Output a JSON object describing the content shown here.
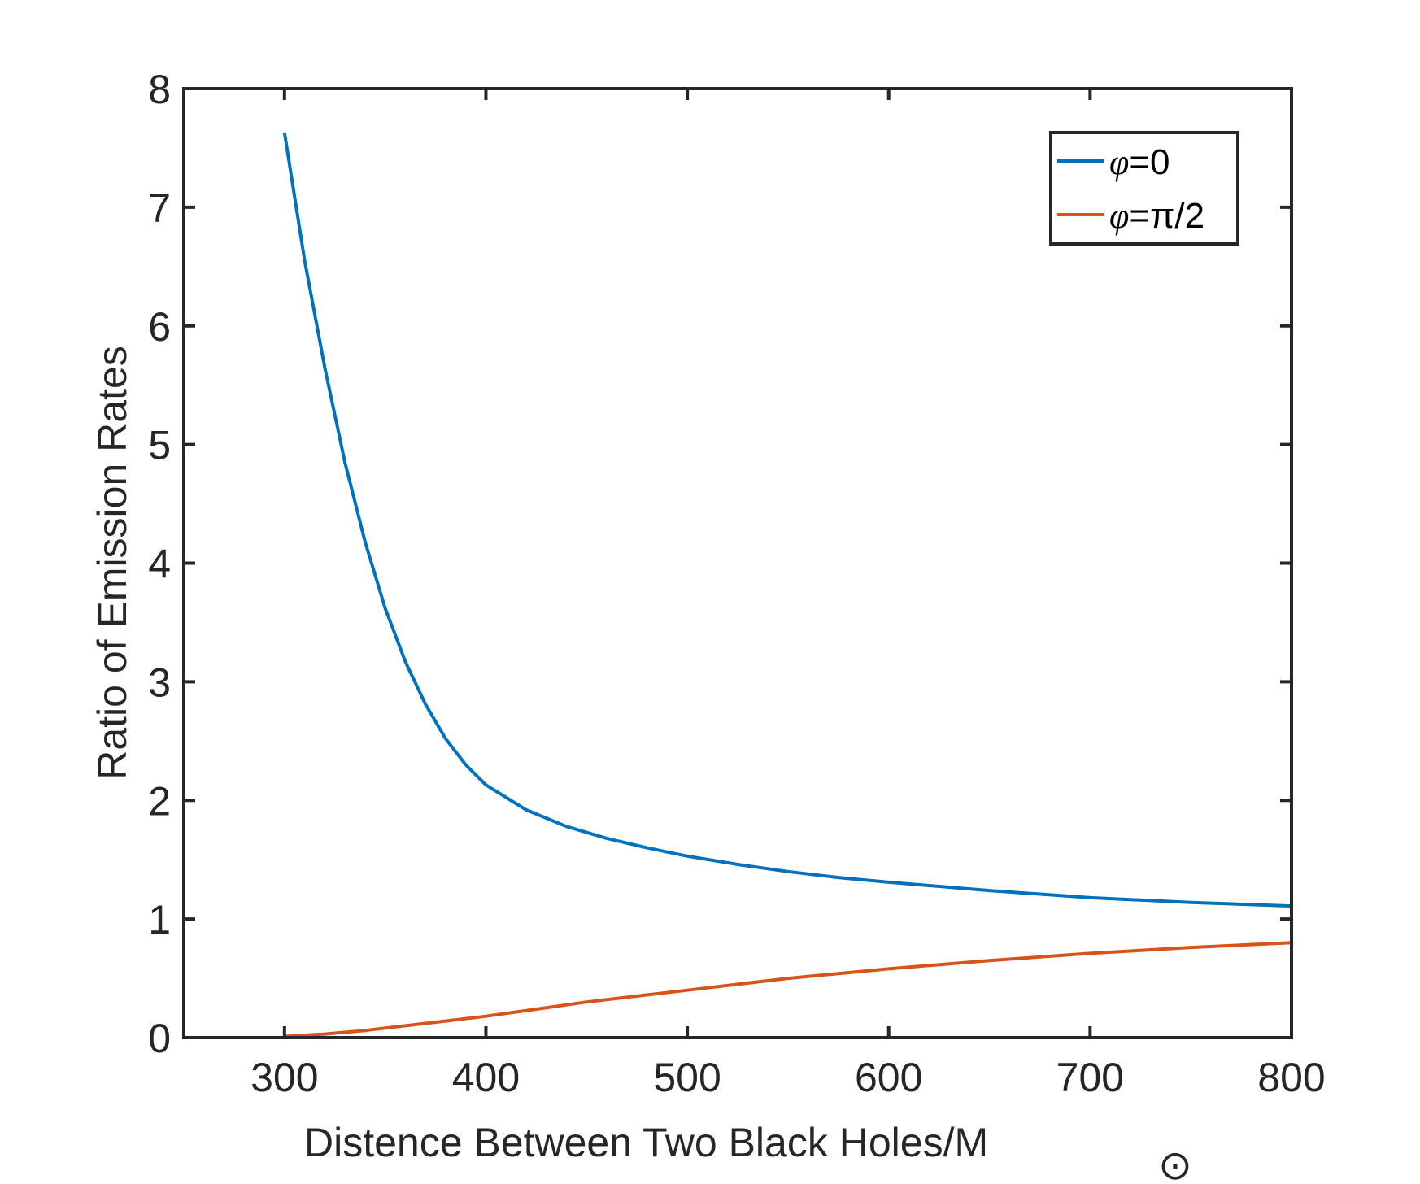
{
  "chart_data": {
    "type": "line",
    "title": "",
    "xlabel": "Distence Between Two Black Holes/M",
    "xlabel_subscript": "⊙",
    "ylabel": "Ratio of Emission Rates",
    "xlim": [
      250,
      800
    ],
    "ylim": [
      0,
      8
    ],
    "xticks": [
      300,
      400,
      500,
      600,
      700,
      800
    ],
    "yticks": [
      0,
      1,
      2,
      3,
      4,
      5,
      6,
      7,
      8
    ],
    "grid": false,
    "legend_position": "top-right",
    "series": [
      {
        "name": "φ=0",
        "symbol": "φ",
        "label_rest": "=0",
        "color": "#0072BD",
        "x": [
          300,
          310,
          320,
          330,
          340,
          350,
          360,
          370,
          380,
          390,
          400,
          420,
          440,
          460,
          480,
          500,
          525,
          550,
          575,
          600,
          650,
          700,
          750,
          800
        ],
        "y": [
          7.63,
          6.55,
          5.65,
          4.85,
          4.18,
          3.62,
          3.17,
          2.81,
          2.52,
          2.3,
          2.13,
          1.92,
          1.78,
          1.68,
          1.6,
          1.53,
          1.46,
          1.4,
          1.35,
          1.31,
          1.24,
          1.18,
          1.14,
          1.11
        ]
      },
      {
        "name": "φ=π/2",
        "symbol": "φ",
        "label_rest": "=π/2",
        "color": "#D95319",
        "x": [
          300,
          320,
          340,
          360,
          380,
          400,
          425,
          450,
          475,
          500,
          525,
          550,
          575,
          600,
          650,
          700,
          750,
          800
        ],
        "y": [
          0.01,
          0.03,
          0.06,
          0.1,
          0.14,
          0.18,
          0.24,
          0.3,
          0.35,
          0.4,
          0.45,
          0.5,
          0.54,
          0.58,
          0.65,
          0.71,
          0.76,
          0.8
        ]
      }
    ]
  }
}
